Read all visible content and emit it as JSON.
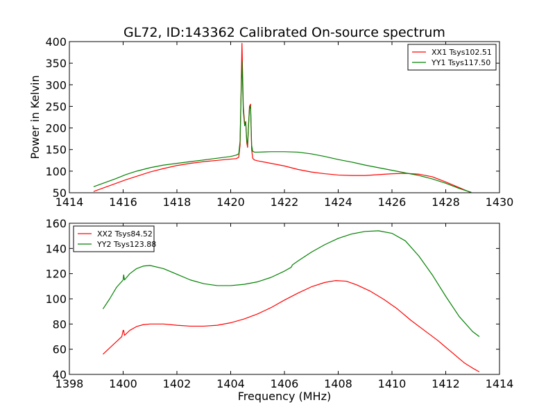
{
  "figure": {
    "title": "GL72, ID:143362 Calibrated On-source spectrum",
    "xlabel": "Frequency (MHz)"
  },
  "chart_data": [
    {
      "type": "line",
      "title": "GL72, ID:143362 Calibrated On-source spectrum",
      "xlabel": "",
      "ylabel": "Power in Kelvin",
      "xlim": [
        1414,
        1430
      ],
      "ylim": [
        50,
        400
      ],
      "xticks": [
        1414,
        1416,
        1418,
        1420,
        1422,
        1424,
        1426,
        1428,
        1430
      ],
      "yticks": [
        50,
        100,
        150,
        200,
        250,
        300,
        350,
        400
      ],
      "legend_position": "top-right",
      "series": [
        {
          "name": "XX1 Tsys102.51",
          "color": "#ff0000",
          "x": [
            1414.9,
            1415.3,
            1415.7,
            1416.1,
            1416.5,
            1417.0,
            1417.5,
            1418.0,
            1418.5,
            1419.0,
            1419.5,
            1420.0,
            1420.2,
            1420.3,
            1420.35,
            1420.38,
            1420.42,
            1420.47,
            1420.52,
            1420.56,
            1420.6,
            1420.63,
            1420.66,
            1420.7,
            1420.74,
            1420.78,
            1420.82,
            1420.88,
            1421.0,
            1421.5,
            1422.0,
            1422.5,
            1423.0,
            1423.5,
            1424.0,
            1424.5,
            1425.0,
            1425.5,
            1426.0,
            1426.5,
            1427.0,
            1427.5,
            1428.0,
            1428.5,
            1428.95
          ],
          "values": [
            53,
            62,
            71,
            80,
            88,
            98,
            106,
            113,
            118,
            122,
            125,
            128,
            129,
            132,
            160,
            260,
            396,
            250,
            210,
            215,
            165,
            155,
            200,
            250,
            255,
            150,
            130,
            126,
            124,
            118,
            112,
            104,
            98,
            94,
            91,
            90,
            90,
            92,
            94,
            95,
            93,
            87,
            75,
            62,
            50
          ]
        },
        {
          "name": "YY1 Tsys117.50",
          "color": "#008000",
          "x": [
            1414.9,
            1415.3,
            1415.7,
            1416.1,
            1416.5,
            1417.0,
            1417.5,
            1418.0,
            1418.5,
            1419.0,
            1419.5,
            1420.0,
            1420.2,
            1420.3,
            1420.35,
            1420.38,
            1420.42,
            1420.47,
            1420.52,
            1420.56,
            1420.6,
            1420.63,
            1420.66,
            1420.7,
            1420.74,
            1420.78,
            1420.82,
            1420.88,
            1421.0,
            1421.5,
            1422.0,
            1422.5,
            1423.0,
            1423.5,
            1424.0,
            1424.5,
            1425.0,
            1425.5,
            1426.0,
            1426.5,
            1427.0,
            1427.5,
            1428.0,
            1428.5,
            1428.95
          ],
          "values": [
            64,
            73,
            82,
            92,
            100,
            108,
            114,
            118,
            122,
            126,
            130,
            134,
            137,
            140,
            170,
            260,
            355,
            240,
            205,
            212,
            170,
            162,
            200,
            245,
            250,
            160,
            146,
            144,
            144,
            145,
            145,
            144,
            140,
            134,
            127,
            121,
            114,
            108,
            102,
            96,
            90,
            82,
            72,
            60,
            51
          ]
        }
      ]
    },
    {
      "type": "line",
      "title": "",
      "xlabel": "Frequency (MHz)",
      "ylabel": "",
      "xlim": [
        1398,
        1414
      ],
      "ylim": [
        40,
        160
      ],
      "xticks": [
        1398,
        1400,
        1402,
        1404,
        1406,
        1408,
        1410,
        1412,
        1414
      ],
      "yticks": [
        40,
        60,
        80,
        100,
        120,
        140,
        160
      ],
      "legend_position": "top-left",
      "series": [
        {
          "name": "XX2 Tsys84.52",
          "color": "#ff0000",
          "x": [
            1399.25,
            1399.5,
            1399.75,
            1399.95,
            1400.0,
            1400.02,
            1400.05,
            1400.25,
            1400.5,
            1400.75,
            1401.0,
            1401.5,
            1402.0,
            1402.5,
            1403.0,
            1403.5,
            1404.0,
            1404.5,
            1405.0,
            1405.5,
            1406.0,
            1406.5,
            1407.0,
            1407.5,
            1407.9,
            1408.3,
            1408.7,
            1409.2,
            1409.7,
            1410.2,
            1410.7,
            1411.2,
            1411.7,
            1412.2,
            1412.7,
            1413.0,
            1413.25
          ],
          "values": [
            56,
            61,
            66,
            70,
            75,
            75,
            71,
            75,
            78,
            79.5,
            80,
            80,
            79,
            78.3,
            78.3,
            79,
            81,
            84,
            88,
            93,
            99,
            104.5,
            109.5,
            113,
            114.5,
            114,
            111,
            106,
            99.5,
            92,
            83,
            75,
            67,
            58,
            49,
            45,
            42
          ]
        },
        {
          "name": "YY2 Tsys123.88",
          "color": "#008000",
          "x": [
            1399.25,
            1399.5,
            1399.75,
            1400.0,
            1400.02,
            1400.05,
            1400.25,
            1400.5,
            1400.75,
            1401.0,
            1401.5,
            1402.0,
            1402.5,
            1403.0,
            1403.5,
            1404.0,
            1404.5,
            1405.0,
            1405.5,
            1406.0,
            1406.25,
            1406.3,
            1406.5,
            1407.0,
            1407.5,
            1408.0,
            1408.5,
            1409.0,
            1409.5,
            1410.0,
            1410.5,
            1411.0,
            1411.5,
            1412.0,
            1412.5,
            1413.0,
            1413.25
          ],
          "values": [
            92,
            100,
            109,
            115,
            119,
            115,
            120,
            124,
            126,
            126.5,
            124,
            119.5,
            115,
            112,
            110.5,
            110.5,
            111.5,
            113.5,
            117,
            122,
            125,
            127,
            130,
            137,
            143,
            148,
            151.5,
            153.5,
            154,
            152,
            146,
            134,
            119,
            102,
            86,
            74,
            70
          ]
        }
      ]
    }
  ]
}
